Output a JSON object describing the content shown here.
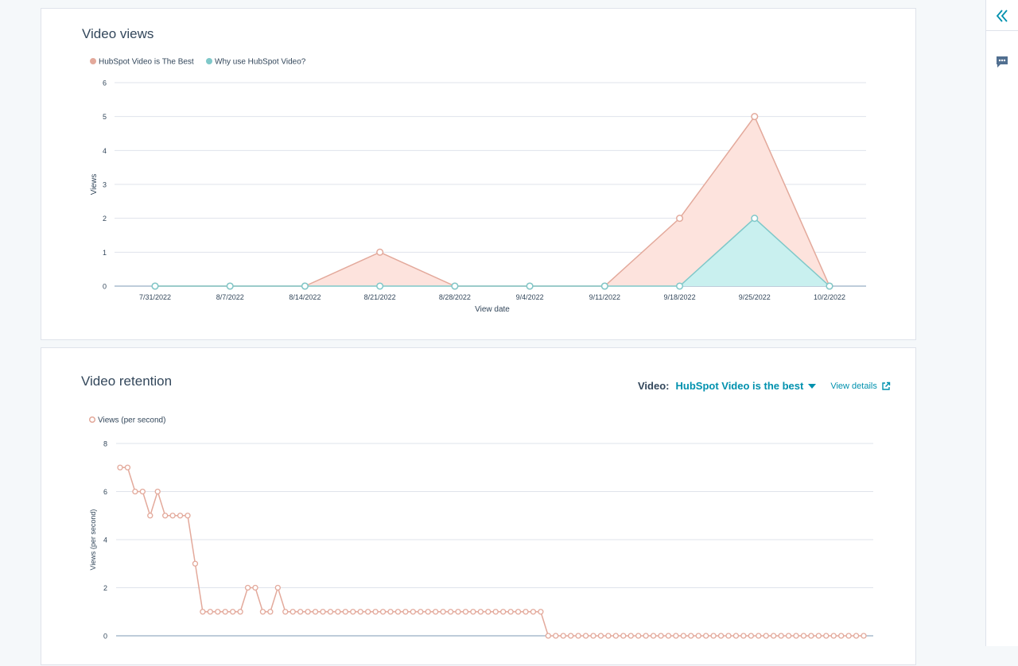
{
  "views_card": {
    "title": "Video views"
  },
  "retention_card": {
    "title": "Video retention",
    "video_label": "Video:",
    "video_selected": "HubSpot Video is the best",
    "view_details": "View details"
  },
  "sidebar": {
    "collapse_icon": "double-chevron-left-icon",
    "chat_icon": "chat-bubble-icon"
  },
  "colors": {
    "series_a": "#e3a99b",
    "series_a_fill": "#fde3dd",
    "series_b": "#7fc8c9",
    "series_b_fill": "#c9f0ef",
    "link": "#0091ae"
  },
  "chart_data": [
    {
      "type": "area",
      "title": "",
      "xlabel": "View date",
      "ylabel": "Views",
      "ylim": [
        0,
        6
      ],
      "yticks": [
        0,
        1,
        2,
        3,
        4,
        5,
        6
      ],
      "grid": true,
      "legend": "top-left",
      "categories": [
        "7/31/2022",
        "8/7/2022",
        "8/14/2022",
        "8/21/2022",
        "8/28/2022",
        "9/4/2022",
        "9/11/2022",
        "9/18/2022",
        "9/25/2022",
        "10/2/2022"
      ],
      "series": [
        {
          "name": "HubSpot Video is The Best",
          "values": [
            0,
            0,
            0,
            1,
            0,
            0,
            0,
            2,
            5,
            0
          ]
        },
        {
          "name": "Why use HubSpot Video?",
          "values": [
            0,
            0,
            0,
            0,
            0,
            0,
            0,
            0,
            2,
            0
          ]
        }
      ]
    },
    {
      "type": "line",
      "title": "",
      "xlabel": "",
      "ylabel": "Views (per second)",
      "ylim": [
        0,
        8
      ],
      "yticks": [
        0,
        2,
        4,
        6,
        8
      ],
      "grid": true,
      "legend": "top-left",
      "series": [
        {
          "name": "Views (per second)",
          "values": [
            7,
            7,
            6,
            6,
            5,
            6,
            5,
            5,
            5,
            5,
            3,
            1,
            1,
            1,
            1,
            1,
            1,
            2,
            2,
            1,
            1,
            2,
            1,
            1,
            1,
            1,
            1,
            1,
            1,
            1,
            1,
            1,
            1,
            1,
            1,
            1,
            1,
            1,
            1,
            1,
            1,
            1,
            1,
            1,
            1,
            1,
            1,
            1,
            1,
            1,
            1,
            1,
            1,
            1,
            1,
            1,
            1,
            0,
            0,
            0,
            0,
            0,
            0,
            0,
            0,
            0,
            0,
            0,
            0,
            0,
            0,
            0,
            0,
            0,
            0,
            0,
            0,
            0,
            0,
            0,
            0,
            0,
            0,
            0,
            0,
            0,
            0,
            0,
            0,
            0,
            0,
            0,
            0,
            0,
            0,
            0,
            0,
            0,
            0,
            0
          ]
        }
      ]
    }
  ]
}
